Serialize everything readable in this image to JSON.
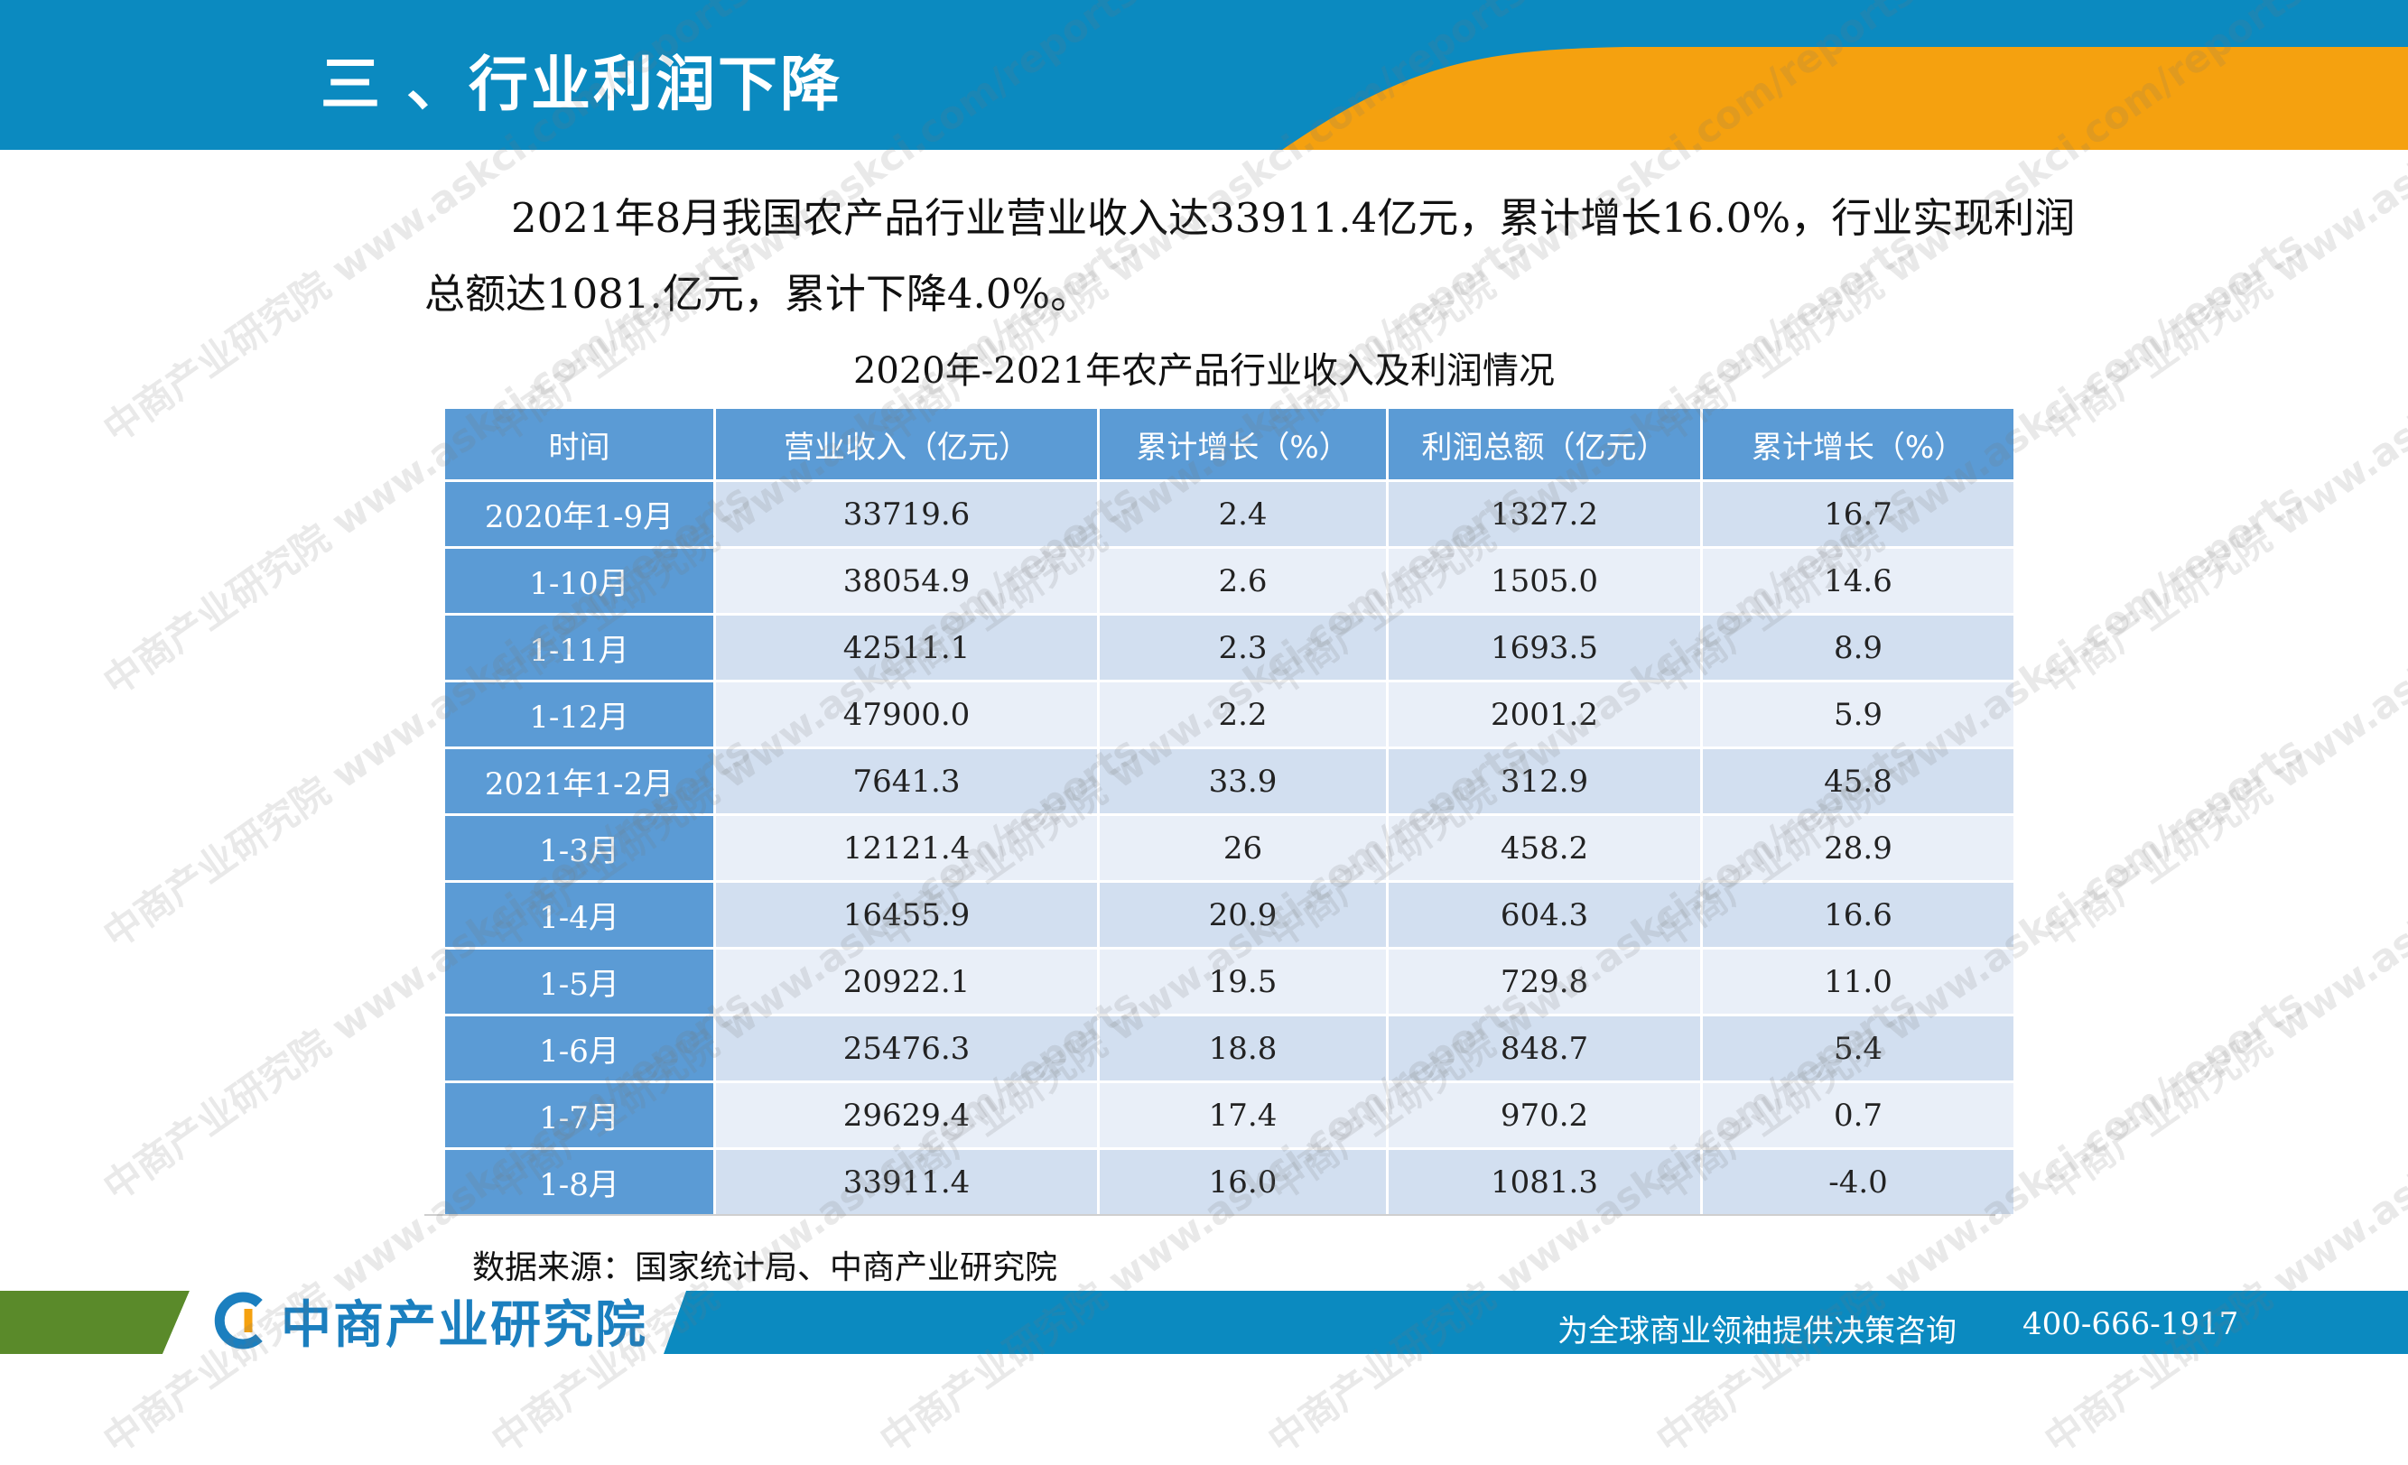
{
  "header": {
    "title": "三 、行业利润下降"
  },
  "intro": {
    "text": "2021年8月我国农产品行业营业收入达33911.4亿元，累计增长16.0%，行业实现利润总额达1081.亿元，累计下降4.0%。"
  },
  "table": {
    "title": "2020年-2021年农产品行业收入及利润情况",
    "headers": [
      "时间",
      "营业收入（亿元）",
      "累计增长（%）",
      "利润总额（亿元）",
      "累计增长（%）"
    ],
    "rows": [
      [
        "2020年1-9月",
        "33719.6",
        "2.4",
        "1327.2",
        "16.7"
      ],
      [
        "1-10月",
        "38054.9",
        "2.6",
        "1505.0",
        "14.6"
      ],
      [
        "1-11月",
        "42511.1",
        "2.3",
        "1693.5",
        "8.9"
      ],
      [
        "1-12月",
        "47900.0",
        "2.2",
        "2001.2",
        "5.9"
      ],
      [
        "2021年1-2月",
        "7641.3",
        "33.9",
        "312.9",
        "45.8"
      ],
      [
        "1-3月",
        "12121.4",
        "26",
        "458.2",
        "28.9"
      ],
      [
        "1-4月",
        "16455.9",
        "20.9",
        "604.3",
        "16.6"
      ],
      [
        "1-5月",
        "20922.1",
        "19.5",
        "729.8",
        "11.0"
      ],
      [
        "1-6月",
        "25476.3",
        "18.8",
        "848.7",
        "5.4"
      ],
      [
        "1-7月",
        "29629.4",
        "17.4",
        "970.2",
        "0.7"
      ],
      [
        "1-8月",
        "33911.4",
        "16.0",
        "1081.3",
        "-4.0"
      ]
    ]
  },
  "source": "数据来源：国家统计局、中商产业研究院",
  "footer": {
    "logo_text": "中商产业研究院",
    "slogan": "为全球商业领袖提供决策咨询",
    "phone": "400-666-1917"
  },
  "watermark": "中商产业研究院 www.askci.com/reports",
  "colors": {
    "header_blue": "#0b8ac0",
    "header_orange": "#f5a10f",
    "table_header": "#5b9bd5",
    "row_dark": "#d2dff0",
    "row_light": "#e9eff8",
    "footer_green": "#5a8a2a"
  }
}
